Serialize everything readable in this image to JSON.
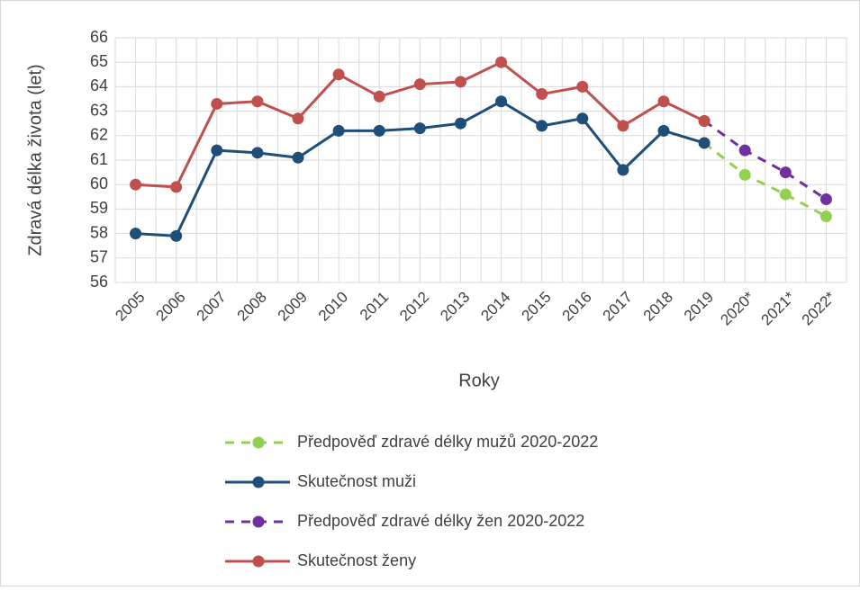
{
  "chart_data": {
    "type": "line",
    "y_label": "Zdravá délka života (let)",
    "x_label": "Roky",
    "categories": [
      "2005",
      "2006",
      "2007",
      "2008",
      "2009",
      "2010",
      "2011",
      "2012",
      "2013",
      "2014",
      "2015",
      "2016",
      "2017",
      "2018",
      "2019",
      "2020*",
      "2021*",
      "2022*"
    ],
    "series": [
      {
        "name": "Předpověď zdravé délky mužů 2020-2022",
        "color": "#92d050",
        "dashed": true,
        "values": [
          null,
          null,
          null,
          null,
          null,
          null,
          null,
          null,
          null,
          null,
          null,
          null,
          null,
          null,
          61.7,
          60.4,
          59.6,
          58.7
        ]
      },
      {
        "name": "Skutečnost muži",
        "color": "#1f4e79",
        "dashed": false,
        "values": [
          58.0,
          57.9,
          61.4,
          61.3,
          61.1,
          62.2,
          62.2,
          62.3,
          62.5,
          63.4,
          62.4,
          62.7,
          60.6,
          62.2,
          61.7,
          null,
          null,
          null
        ]
      },
      {
        "name": "Předpověď zdravé délky žen 2020-2022",
        "color": "#7030a0",
        "dashed": true,
        "values": [
          null,
          null,
          null,
          null,
          null,
          null,
          null,
          null,
          null,
          null,
          null,
          null,
          null,
          null,
          62.6,
          61.4,
          60.5,
          59.4
        ]
      },
      {
        "name": "Skutečnost ženy",
        "color": "#c0504d",
        "dashed": false,
        "values": [
          60.0,
          59.9,
          63.3,
          63.4,
          62.7,
          64.5,
          63.6,
          64.1,
          64.2,
          65.0,
          63.7,
          64.0,
          62.4,
          63.4,
          62.6,
          null,
          null,
          null
        ]
      }
    ],
    "ylim": [
      56,
      66
    ],
    "yticks": [
      56,
      57,
      58,
      59,
      60,
      61,
      62,
      63,
      64,
      65,
      66
    ],
    "grid": true,
    "legend": "bottom"
  }
}
